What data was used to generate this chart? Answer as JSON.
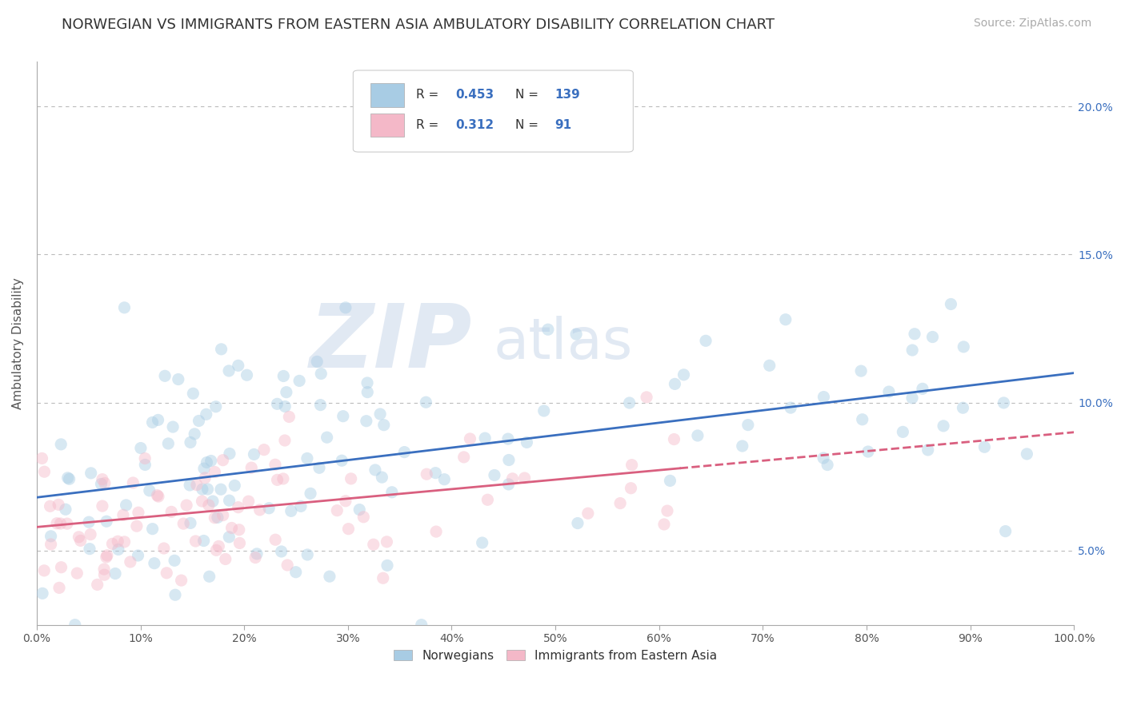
{
  "title": "NORWEGIAN VS IMMIGRANTS FROM EASTERN ASIA AMBULATORY DISABILITY CORRELATION CHART",
  "source": "Source: ZipAtlas.com",
  "ylabel": "Ambulatory Disability",
  "xlim": [
    0,
    100
  ],
  "ylim": [
    2.5,
    21.5
  ],
  "blue_R": 0.453,
  "blue_N": 139,
  "pink_R": 0.312,
  "pink_N": 91,
  "blue_color": "#a8cce4",
  "pink_color": "#f4b8c8",
  "blue_line_color": "#3a6fbf",
  "pink_line_color": "#d95f7f",
  "watermark_zip": "ZIP",
  "watermark_atlas": "atlas",
  "background_color": "#ffffff",
  "legend_label_blue": "Norwegians",
  "legend_label_pink": "Immigrants from Eastern Asia",
  "xticks": [
    0,
    10,
    20,
    30,
    40,
    50,
    60,
    70,
    80,
    90,
    100
  ],
  "ytick_values": [
    5.0,
    10.0,
    15.0,
    20.0
  ],
  "title_fontsize": 13,
  "source_fontsize": 10,
  "axis_label_fontsize": 11,
  "tick_fontsize": 10,
  "dot_size": 120,
  "dot_alpha": 0.45,
  "grid_color": "#bbbbbb",
  "grid_linestyle": "--",
  "watermark_zip_color": "#c5d4e8",
  "watermark_atlas_color": "#c5d4e8",
  "watermark_fontsize": 80,
  "watermark_alpha": 0.5,
  "blue_intercept": 6.8,
  "blue_slope": 0.042,
  "pink_intercept": 5.8,
  "pink_slope": 0.032
}
